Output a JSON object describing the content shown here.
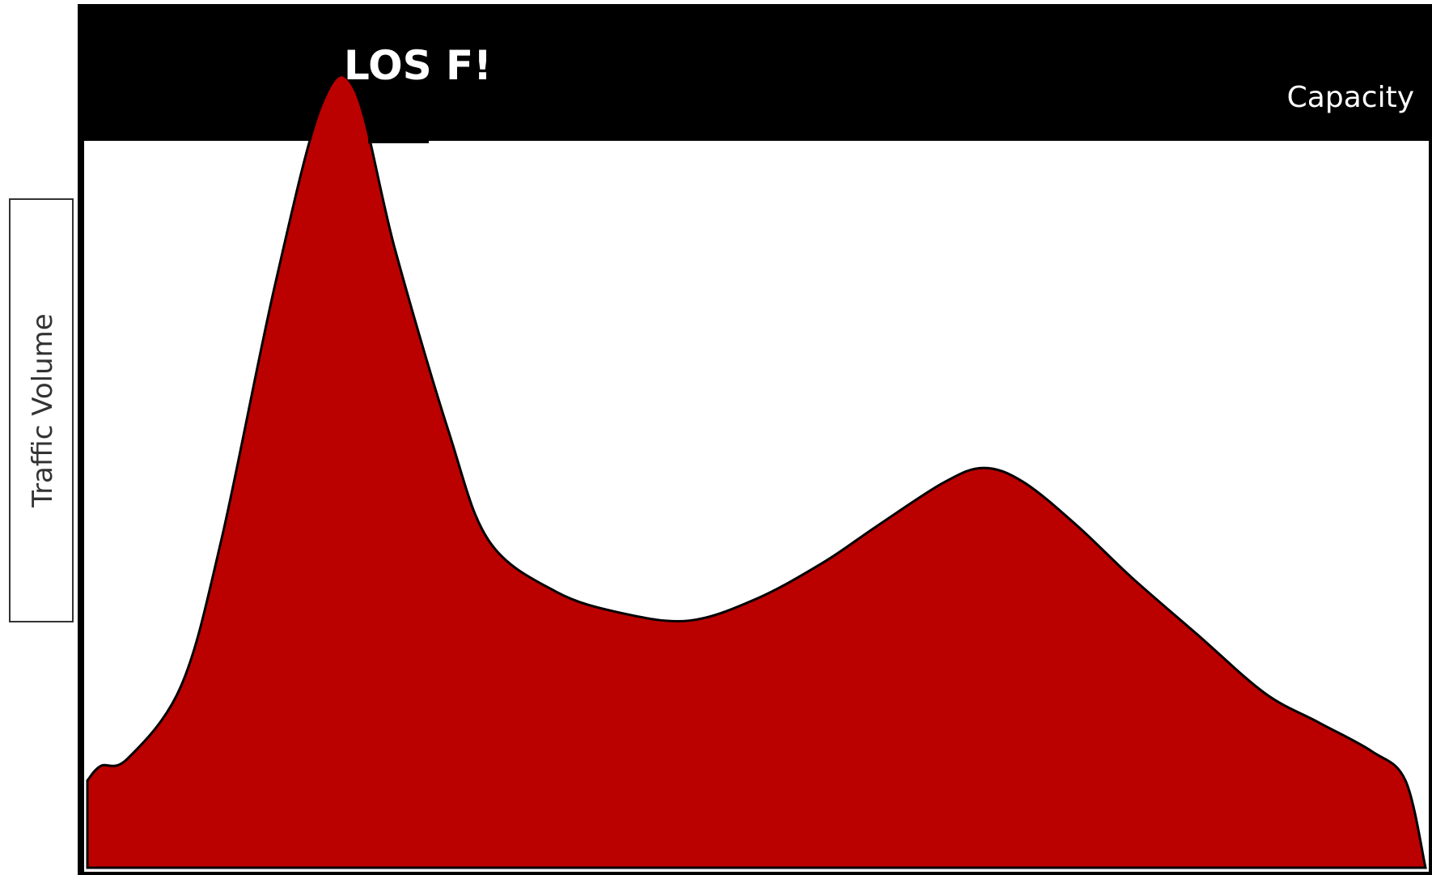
{
  "chart_data": {
    "type": "area",
    "title": "",
    "xlabel": "",
    "ylabel": "Traffic Volume",
    "capacity_label": "Capacity",
    "annotation": "LOS F!",
    "ylim": [
      0,
      100
    ],
    "capacity": 100,
    "x": [
      0,
      1,
      3,
      7,
      10,
      14,
      17.5,
      20,
      23,
      27,
      30,
      35,
      40,
      45,
      50,
      55,
      59,
      64,
      67,
      70,
      74,
      78,
      83,
      88,
      92,
      96,
      98.5,
      100
    ],
    "series": [
      {
        "name": "",
        "values": [
          12,
          14,
          15,
          25,
          45,
          80,
          105,
          107,
          85,
          60,
          45,
          38,
          35,
          34,
          37,
          42,
          47,
          53,
          55,
          53,
          47,
          40,
          32,
          24,
          20,
          16,
          12,
          0
        ]
      }
    ],
    "colors": {
      "area_fill": "#bb0000",
      "area_stroke": "#000000",
      "capacity_band": "#000000",
      "frame": "#000000"
    },
    "grid": false,
    "legend": "none"
  }
}
